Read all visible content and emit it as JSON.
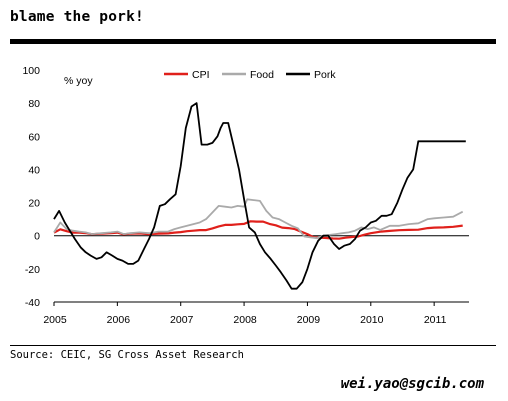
{
  "title": "blame the pork!",
  "source": "Source: CEIC, SG Cross Asset Research",
  "email": "wei.yao@sgcib.com",
  "chart_data": {
    "type": "line",
    "ylabel": "% yoy",
    "ylim": [
      -40,
      100
    ],
    "yticks": [
      -40,
      -20,
      0,
      20,
      40,
      60,
      80,
      100
    ],
    "xlim": [
      2005.0,
      2011.55
    ],
    "xticks": [
      2005,
      2006,
      2007,
      2008,
      2009,
      2010,
      2011
    ],
    "xtick_labels": [
      "2005",
      "2006",
      "2007",
      "2008",
      "2009",
      "2010",
      "2011"
    ],
    "grid": false,
    "legend": "top-center",
    "series": [
      {
        "name": "CPI",
        "color": "#e0201b",
        "x": [
          2005.0,
          2005.1,
          2005.2,
          2005.3,
          2005.4,
          2005.5,
          2005.6,
          2005.75,
          2005.9,
          2006.0,
          2006.1,
          2006.2,
          2006.35,
          2006.5,
          2006.65,
          2006.8,
          2006.9,
          2007.0,
          2007.1,
          2007.2,
          2007.3,
          2007.4,
          2007.5,
          2007.6,
          2007.7,
          2007.8,
          2007.9,
          2008.0,
          2008.1,
          2008.2,
          2008.3,
          2008.4,
          2008.5,
          2008.6,
          2008.7,
          2008.8,
          2008.9,
          2009.0,
          2009.1,
          2009.2,
          2009.3,
          2009.4,
          2009.5,
          2009.6,
          2009.7,
          2009.8,
          2009.9,
          2010.0,
          2010.15,
          2010.3,
          2010.45,
          2010.6,
          2010.75,
          2010.9,
          2011.0,
          2011.15,
          2011.3,
          2011.45
        ],
        "values": [
          1.9,
          3.9,
          2.7,
          1.8,
          1.8,
          1.6,
          0.9,
          1.3,
          1.6,
          1.9,
          0.8,
          1.3,
          1.4,
          1.0,
          1.3,
          1.4,
          1.9,
          2.2,
          2.7,
          3.0,
          3.4,
          3.4,
          4.4,
          5.6,
          6.5,
          6.5,
          6.9,
          7.1,
          8.7,
          8.5,
          8.5,
          7.1,
          6.3,
          4.9,
          4.6,
          4.0,
          2.4,
          1.0,
          -1.0,
          -1.2,
          -1.4,
          -1.7,
          -1.8,
          -1.2,
          -0.8,
          -0.5,
          0.6,
          1.5,
          2.4,
          2.9,
          3.3,
          3.5,
          3.6,
          4.6,
          4.9,
          5.0,
          5.4,
          6.1
        ]
      },
      {
        "name": "Food",
        "color": "#aaaaaa",
        "x": [
          2005.0,
          2005.1,
          2005.2,
          2005.3,
          2005.4,
          2005.5,
          2005.6,
          2005.75,
          2005.9,
          2006.0,
          2006.1,
          2006.2,
          2006.35,
          2006.5,
          2006.65,
          2006.8,
          2006.9,
          2007.0,
          2007.1,
          2007.2,
          2007.3,
          2007.4,
          2007.5,
          2007.6,
          2007.7,
          2007.8,
          2007.9,
          2008.0,
          2008.05,
          2008.15,
          2008.25,
          2008.35,
          2008.45,
          2008.55,
          2008.65,
          2008.75,
          2008.85,
          2008.95,
          2009.05,
          2009.15,
          2009.25,
          2009.35,
          2009.45,
          2009.55,
          2009.65,
          2009.75,
          2009.85,
          2009.95,
          2010.05,
          2010.15,
          2010.3,
          2010.45,
          2010.6,
          2010.75,
          2010.9,
          2011.0,
          2011.15,
          2011.3,
          2011.45
        ],
        "values": [
          2.0,
          8.0,
          4.0,
          3.0,
          2.5,
          2.0,
          1.0,
          1.5,
          2.0,
          2.5,
          1.0,
          1.5,
          2.0,
          1.5,
          2.5,
          2.5,
          4.0,
          5.0,
          6.0,
          7.0,
          8.0,
          10.0,
          14.0,
          18.0,
          17.5,
          17.0,
          18.0,
          17.5,
          22.0,
          21.5,
          21.0,
          15.0,
          11.0,
          10.0,
          8.0,
          6.0,
          4.5,
          -0.5,
          -1.0,
          -1.5,
          0.0,
          0.5,
          1.0,
          1.5,
          2.0,
          3.0,
          5.0,
          4.0,
          5.0,
          3.5,
          6.0,
          6.0,
          7.0,
          7.5,
          10.0,
          10.5,
          11.0,
          11.5,
          14.5
        ]
      },
      {
        "name": "Pork",
        "color": "#000000",
        "x": [
          2005.0,
          2005.08,
          2005.17,
          2005.25,
          2005.33,
          2005.42,
          2005.5,
          2005.58,
          2005.67,
          2005.75,
          2005.83,
          2005.92,
          2006.0,
          2006.08,
          2006.17,
          2006.25,
          2006.33,
          2006.42,
          2006.5,
          2006.58,
          2006.67,
          2006.75,
          2006.83,
          2006.92,
          2007.0,
          2007.08,
          2007.17,
          2007.25,
          2007.33,
          2007.42,
          2007.5,
          2007.58,
          2007.63,
          2007.67,
          2007.75,
          2007.83,
          2007.92,
          2008.0,
          2008.08,
          2008.17,
          2008.25,
          2008.33,
          2008.42,
          2008.5,
          2008.58,
          2008.67,
          2008.75,
          2008.83,
          2008.92,
          2009.0,
          2009.08,
          2009.17,
          2009.25,
          2009.33,
          2009.42,
          2009.5,
          2009.58,
          2009.67,
          2009.75,
          2009.83,
          2009.92,
          2010.0,
          2010.08,
          2010.17,
          2010.25,
          2010.33,
          2010.42,
          2010.5,
          2010.58,
          2010.67,
          2010.75,
          2010.83,
          2010.92,
          2011.0,
          2011.08,
          2011.17,
          2011.25,
          2011.33,
          2011.42,
          2011.5
        ],
        "values": [
          10,
          15,
          8,
          3,
          -2,
          -7,
          -10,
          -12,
          -14,
          -13,
          -10,
          -12,
          -14,
          -15,
          -17,
          -17,
          -15,
          -8,
          -2,
          5,
          18,
          19,
          22,
          25,
          42,
          65,
          78,
          80,
          55,
          55,
          56,
          60,
          65,
          68,
          68,
          55,
          40,
          22,
          5,
          2,
          -5,
          -10,
          -14,
          -18,
          -22,
          -27,
          -32,
          -32,
          -28,
          -20,
          -10,
          -3,
          0,
          0,
          -5,
          -8,
          -6,
          -5,
          -2,
          3,
          5,
          8,
          9,
          12,
          12,
          13,
          20,
          28,
          35,
          40,
          57,
          57,
          57,
          57,
          57,
          57,
          57,
          57,
          57,
          57
        ]
      }
    ]
  }
}
